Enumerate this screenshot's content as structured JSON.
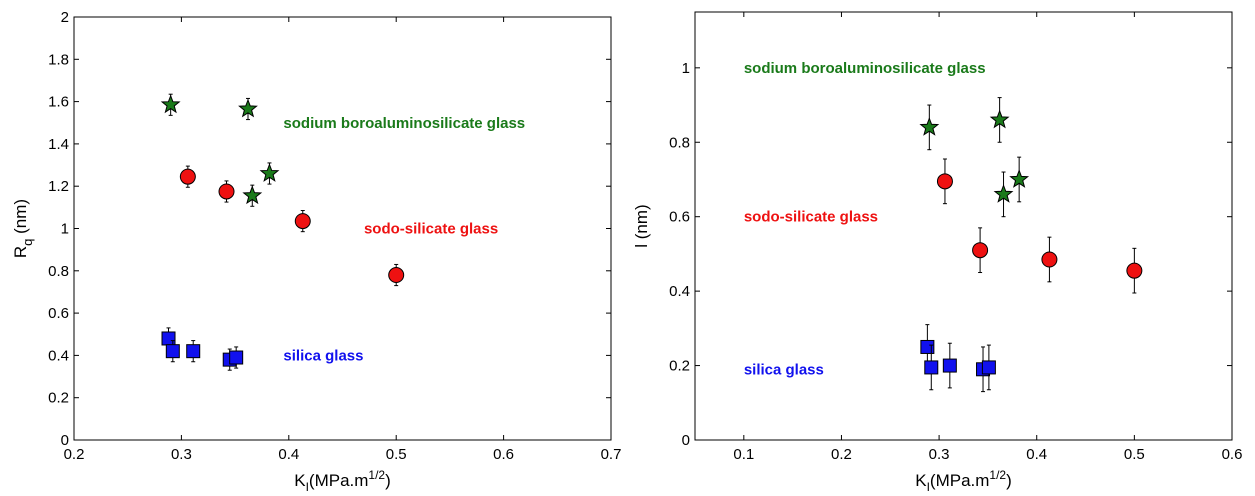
{
  "chart_data": [
    {
      "type": "scatter",
      "xlim": [
        0.2,
        0.7
      ],
      "ylim": [
        0,
        2
      ],
      "xticks": [
        "0.2",
        "0.3",
        "0.4",
        "0.5",
        "0.6",
        "0.7"
      ],
      "yticks": [
        "0",
        "0.2",
        "0.4",
        "0.6",
        "0.8",
        "1",
        "1.2",
        "1.4",
        "1.6",
        "1.8",
        "2"
      ],
      "xlabel": {
        "main": "K",
        "sub": "I",
        "rest": "(MPa.m",
        "sup": "1/2",
        "close": ")"
      },
      "ylabel": {
        "main": "R",
        "sub": "q",
        "rest": " (nm)"
      },
      "grid": false,
      "series": [
        {
          "name": "sodium boroaluminosilicate glass",
          "marker": "star",
          "color": "#1a7a1a",
          "x": [
            0.29,
            0.362,
            0.366,
            0.382
          ],
          "y": [
            1.585,
            1.565,
            1.155,
            1.26
          ],
          "err": [
            0.05,
            0.05,
            0.05,
            0.05
          ],
          "label_x": 0.395,
          "label_y": 1.5
        },
        {
          "name": "sodo-silicate glass",
          "marker": "circle",
          "color": "#ee1111",
          "x": [
            0.306,
            0.342,
            0.413,
            0.5
          ],
          "y": [
            1.245,
            1.175,
            1.035,
            0.78
          ],
          "err": [
            0.05,
            0.05,
            0.05,
            0.05
          ],
          "label_x": 0.47,
          "label_y": 1.0
        },
        {
          "name": "silica glass",
          "marker": "square",
          "color": "#1111ee",
          "x": [
            0.288,
            0.292,
            0.311,
            0.345,
            0.351
          ],
          "y": [
            0.48,
            0.42,
            0.42,
            0.38,
            0.39
          ],
          "err": [
            0.05,
            0.05,
            0.05,
            0.05,
            0.05
          ],
          "label_x": 0.395,
          "label_y": 0.4
        }
      ]
    },
    {
      "type": "scatter",
      "xlim": [
        0.05,
        0.6
      ],
      "ylim": [
        0,
        1.15
      ],
      "xticks": [
        "0.1",
        "0.2",
        "0.3",
        "0.4",
        "0.5",
        "0.6"
      ],
      "yticks": [
        "0",
        "0.2",
        "0.4",
        "0.6",
        "0.8",
        "1"
      ],
      "xlabel": {
        "main": "K",
        "sub": "I",
        "rest": "(MPa.m",
        "sup": "1/2",
        "close": ")"
      },
      "ylabel": {
        "main": "l (nm)",
        "sub": "",
        "rest": ""
      },
      "grid": false,
      "series": [
        {
          "name": "sodium boroaluminosilicate glass",
          "marker": "star",
          "color": "#1a7a1a",
          "x": [
            0.29,
            0.362,
            0.366,
            0.382
          ],
          "y": [
            0.84,
            0.86,
            0.66,
            0.7
          ],
          "err": [
            0.06,
            0.06,
            0.06,
            0.06
          ],
          "label_x": 0.1,
          "label_y": 1.0
        },
        {
          "name": "sodo-silicate glass",
          "marker": "circle",
          "color": "#ee1111",
          "x": [
            0.306,
            0.342,
            0.413,
            0.5
          ],
          "y": [
            0.695,
            0.51,
            0.485,
            0.455
          ],
          "err": [
            0.06,
            0.06,
            0.06,
            0.06
          ],
          "label_x": 0.1,
          "label_y": 0.6
        },
        {
          "name": "silica glass",
          "marker": "square",
          "color": "#1111ee",
          "x": [
            0.288,
            0.292,
            0.311,
            0.345,
            0.351
          ],
          "y": [
            0.25,
            0.195,
            0.2,
            0.19,
            0.195
          ],
          "err": [
            0.06,
            0.06,
            0.06,
            0.06,
            0.06
          ],
          "label_x": 0.1,
          "label_y": 0.19
        }
      ]
    }
  ]
}
